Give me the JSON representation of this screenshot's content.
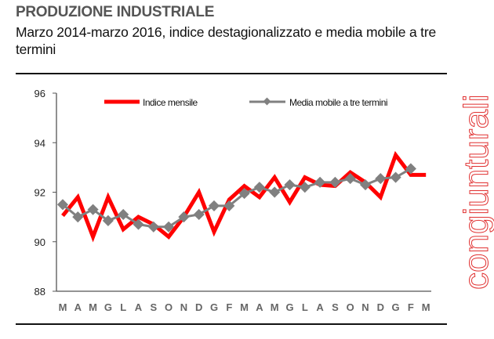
{
  "header": {
    "title": "PRODUZIONE INDUSTRIALE",
    "subtitle": "Marzo 2014-marzo 2016, indice destagionalizzato e media mobile a tre termini",
    "side_label": "congiunturali"
  },
  "chart_data": {
    "type": "line",
    "title": "PRODUZIONE INDUSTRIALE",
    "categories": [
      "M",
      "A",
      "M",
      "G",
      "L",
      "A",
      "S",
      "O",
      "N",
      "D",
      "G",
      "F",
      "M",
      "A",
      "M",
      "G",
      "L",
      "A",
      "S",
      "O",
      "N",
      "D",
      "G",
      "F",
      "M"
    ],
    "ylim": [
      88,
      96
    ],
    "yticks": [
      88,
      90,
      92,
      94,
      96
    ],
    "grid": false,
    "legend": "top",
    "series": [
      {
        "name": "Indice mensile",
        "color": "#ff0000",
        "values": [
          91.05,
          91.8,
          90.2,
          91.8,
          90.5,
          91.0,
          90.7,
          90.2,
          91.0,
          92.0,
          90.4,
          91.7,
          92.25,
          91.8,
          92.6,
          91.6,
          92.6,
          92.3,
          92.25,
          92.8,
          92.4,
          91.8,
          93.5,
          92.7,
          92.7
        ]
      },
      {
        "name": "Media mobile a tre termini",
        "color": "#808080",
        "values": [
          91.5,
          91.0,
          91.3,
          90.85,
          91.1,
          90.7,
          90.6,
          90.6,
          91.0,
          91.1,
          91.45,
          91.45,
          91.95,
          92.2,
          92.0,
          92.3,
          92.2,
          92.4,
          92.4,
          92.55,
          92.3,
          92.55,
          92.6,
          92.95,
          null
        ]
      }
    ]
  }
}
